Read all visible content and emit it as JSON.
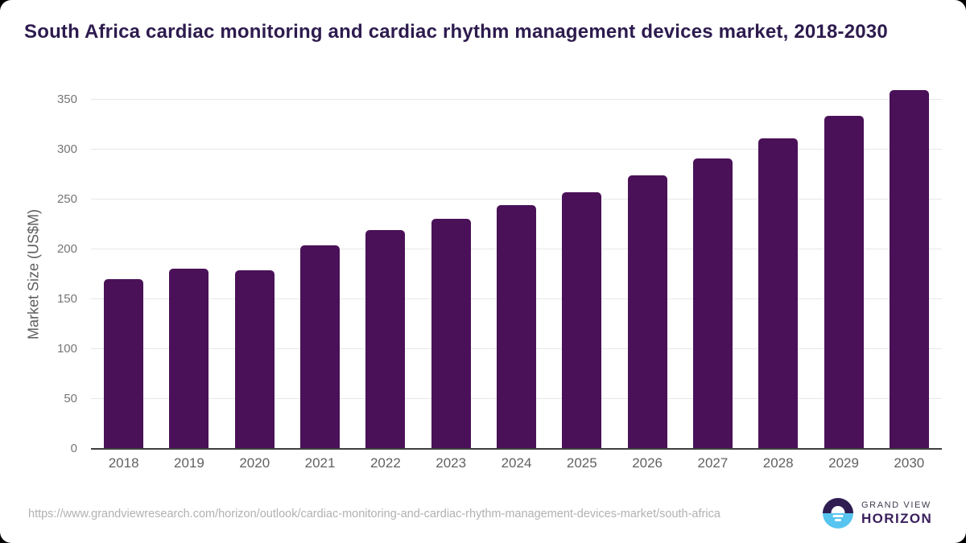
{
  "title": "South Africa cardiac monitoring and cardiac rhythm management devices market, 2018-2030",
  "chart_data": {
    "type": "bar",
    "title": "South Africa cardiac monitoring and cardiac rhythm management devices market, 2018-2030",
    "categories": [
      "2018",
      "2019",
      "2020",
      "2021",
      "2022",
      "2023",
      "2024",
      "2025",
      "2026",
      "2027",
      "2028",
      "2029",
      "2030"
    ],
    "values": [
      170,
      181,
      179,
      204,
      219,
      231,
      244,
      257,
      274,
      291,
      311,
      334,
      360
    ],
    "xlabel": "",
    "ylabel": "Market Size (US$M)",
    "ylim": [
      0,
      350
    ],
    "ytick_step": 50,
    "yticks": [
      "0",
      "50",
      "100",
      "150",
      "200",
      "250",
      "300",
      "350"
    ],
    "grid": true,
    "legend": "none",
    "bar_color": "#4a1158"
  },
  "footer": {
    "source_url": "https://www.grandviewresearch.com/horizon/outlook/cardiac-monitoring-and-cardiac-rhythm-management-devices-market/south-africa",
    "logo": {
      "top": "GRAND VIEW",
      "bottom": "HORIZON"
    }
  },
  "colors": {
    "bar": "#4a1158",
    "title_text": "#2d1b4e",
    "axis_text": "#757575",
    "gridline": "#e7e7e7",
    "logo_purple": "#2f1d52",
    "logo_blue": "#57c5ef"
  }
}
